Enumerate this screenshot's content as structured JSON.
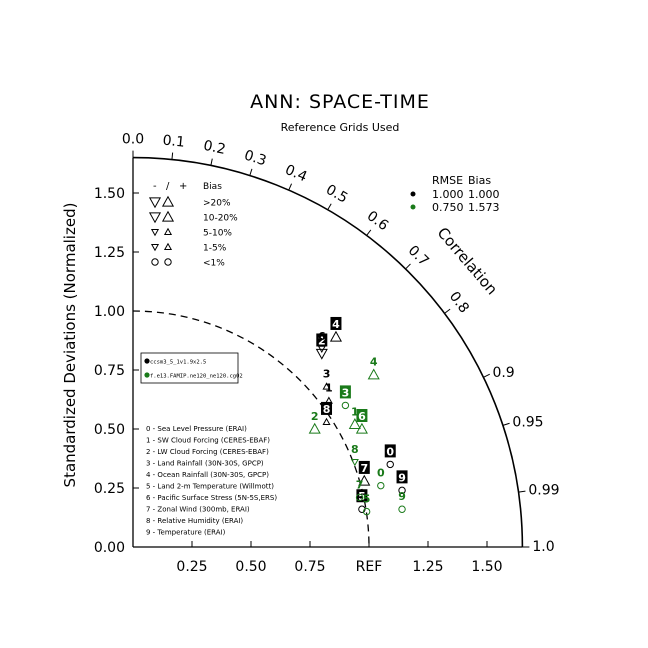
{
  "chart_data": {
    "type": "scatter",
    "subtype": "taylor-diagram",
    "title": "ANN: SPACE-TIME",
    "subtitle": "Reference Grids Used",
    "ylabel": "Standardized Deviations (Normalized)",
    "arc_label": "Correlation",
    "ref_label": "REF",
    "grid": false,
    "ylim": [
      0,
      1.65
    ],
    "xlim": [
      0,
      1.65
    ],
    "y_ticks": [
      "0.00",
      "0.25",
      "0.50",
      "0.75",
      "1.00",
      "1.25",
      "1.50"
    ],
    "x_ticks": [
      "0.25",
      "0.50",
      "0.75",
      "1.25",
      "1.50"
    ],
    "corr_ticks_top": [
      "0.0",
      "0.1",
      "0.2",
      "0.3",
      "0.4",
      "0.5",
      "0.6",
      "0.7",
      "0.8"
    ],
    "corr_ticks_side": [
      "0.9",
      "0.95",
      "0.99",
      "1.0"
    ],
    "bias_legend": {
      "header": [
        "-",
        "/",
        "+",
        "Bias"
      ],
      "rows": [
        ">20%",
        "10-20%",
        "5-10%",
        "1-5%",
        "<1%"
      ]
    },
    "rmse_legend": {
      "header": [
        "RMSE",
        "Bias"
      ],
      "rows": [
        {
          "rmse": "1.000",
          "bias": "1.000",
          "color": "#000000"
        },
        {
          "rmse": "0.750",
          "bias": "1.573",
          "color": "#1a7a1a"
        }
      ]
    },
    "case_legend": [
      {
        "name": "ccsm3_5_1v1.9x2.5",
        "color": "#000000"
      },
      {
        "name": "f.e13.FAMIP.ne120_ne120.cg02",
        "color": "#1a7a1a"
      }
    ],
    "variable_list": [
      "0 - Sea Level Pressure (ERAI)",
      "1 - SW Cloud Forcing (CERES-EBAF)",
      "2 - LW Cloud Forcing (CERES-EBAF)",
      "3 - Land Rainfall (30N-30S, GPCP)",
      "4 - Ocean Rainfall (30N-30S, GPCP)",
      "5 - Land 2-m Temperature (Willmott)",
      "6 - Pacific Surface Stress (5N-5S,ERS)",
      "7 - Zonal Wind (300mb, ERAI)",
      "8 - Relative Humidity (ERAI)",
      "9 - Temperature (ERAI)"
    ],
    "series": [
      {
        "name": "ccsm3_5_1v1.9x2.5",
        "color": "#000000",
        "points": [
          {
            "id": "0",
            "x": 1.09,
            "y": 0.35,
            "marker": "circle",
            "label_boxed": true
          },
          {
            "id": "1",
            "x": 0.83,
            "y": 0.62,
            "marker": "tri-up-small",
            "label_boxed": false
          },
          {
            "id": "2",
            "x": 0.8,
            "y": 0.82,
            "marker": "tri-down",
            "label_boxed": true
          },
          {
            "id": "3",
            "x": 0.82,
            "y": 0.68,
            "marker": "tri-up-small",
            "label_boxed": false
          },
          {
            "id": "4",
            "x": 0.86,
            "y": 0.89,
            "marker": "tri-up",
            "label_boxed": true
          },
          {
            "id": "5",
            "x": 0.97,
            "y": 0.16,
            "marker": "circle",
            "label_boxed": true
          },
          {
            "id": "6",
            "x": 0.8,
            "y": 0.84,
            "marker": "tri-down-small",
            "label_boxed": false
          },
          {
            "id": "7",
            "x": 0.98,
            "y": 0.28,
            "marker": "tri-up",
            "label_boxed": true
          },
          {
            "id": "8",
            "x": 0.82,
            "y": 0.53,
            "marker": "tri-up-small",
            "label_boxed": true
          },
          {
            "id": "9",
            "x": 1.14,
            "y": 0.24,
            "marker": "circle",
            "label_boxed": true
          }
        ]
      },
      {
        "name": "f.e13.FAMIP.ne120_ne120.cg02",
        "color": "#1a7a1a",
        "points": [
          {
            "id": "0",
            "x": 1.05,
            "y": 0.26,
            "marker": "circle",
            "label_boxed": false
          },
          {
            "id": "1",
            "x": 0.94,
            "y": 0.52,
            "marker": "tri-up",
            "label_boxed": false
          },
          {
            "id": "2",
            "x": 0.77,
            "y": 0.5,
            "marker": "tri-up",
            "label_boxed": false
          },
          {
            "id": "3",
            "x": 0.9,
            "y": 0.6,
            "marker": "circle",
            "label_boxed": true
          },
          {
            "id": "4",
            "x": 1.02,
            "y": 0.73,
            "marker": "tri-up",
            "label_boxed": false
          },
          {
            "id": "5",
            "x": 0.99,
            "y": 0.15,
            "marker": "circle",
            "label_boxed": false
          },
          {
            "id": "6",
            "x": 0.97,
            "y": 0.5,
            "marker": "tri-up",
            "label_boxed": true
          },
          {
            "id": "7",
            "x": 0.96,
            "y": 0.21,
            "marker": "circle",
            "label_boxed": false
          },
          {
            "id": "8",
            "x": 0.94,
            "y": 0.36,
            "marker": "tri-down-small",
            "label_boxed": false
          },
          {
            "id": "9",
            "x": 1.14,
            "y": 0.16,
            "marker": "circle",
            "label_boxed": false
          }
        ]
      }
    ]
  }
}
